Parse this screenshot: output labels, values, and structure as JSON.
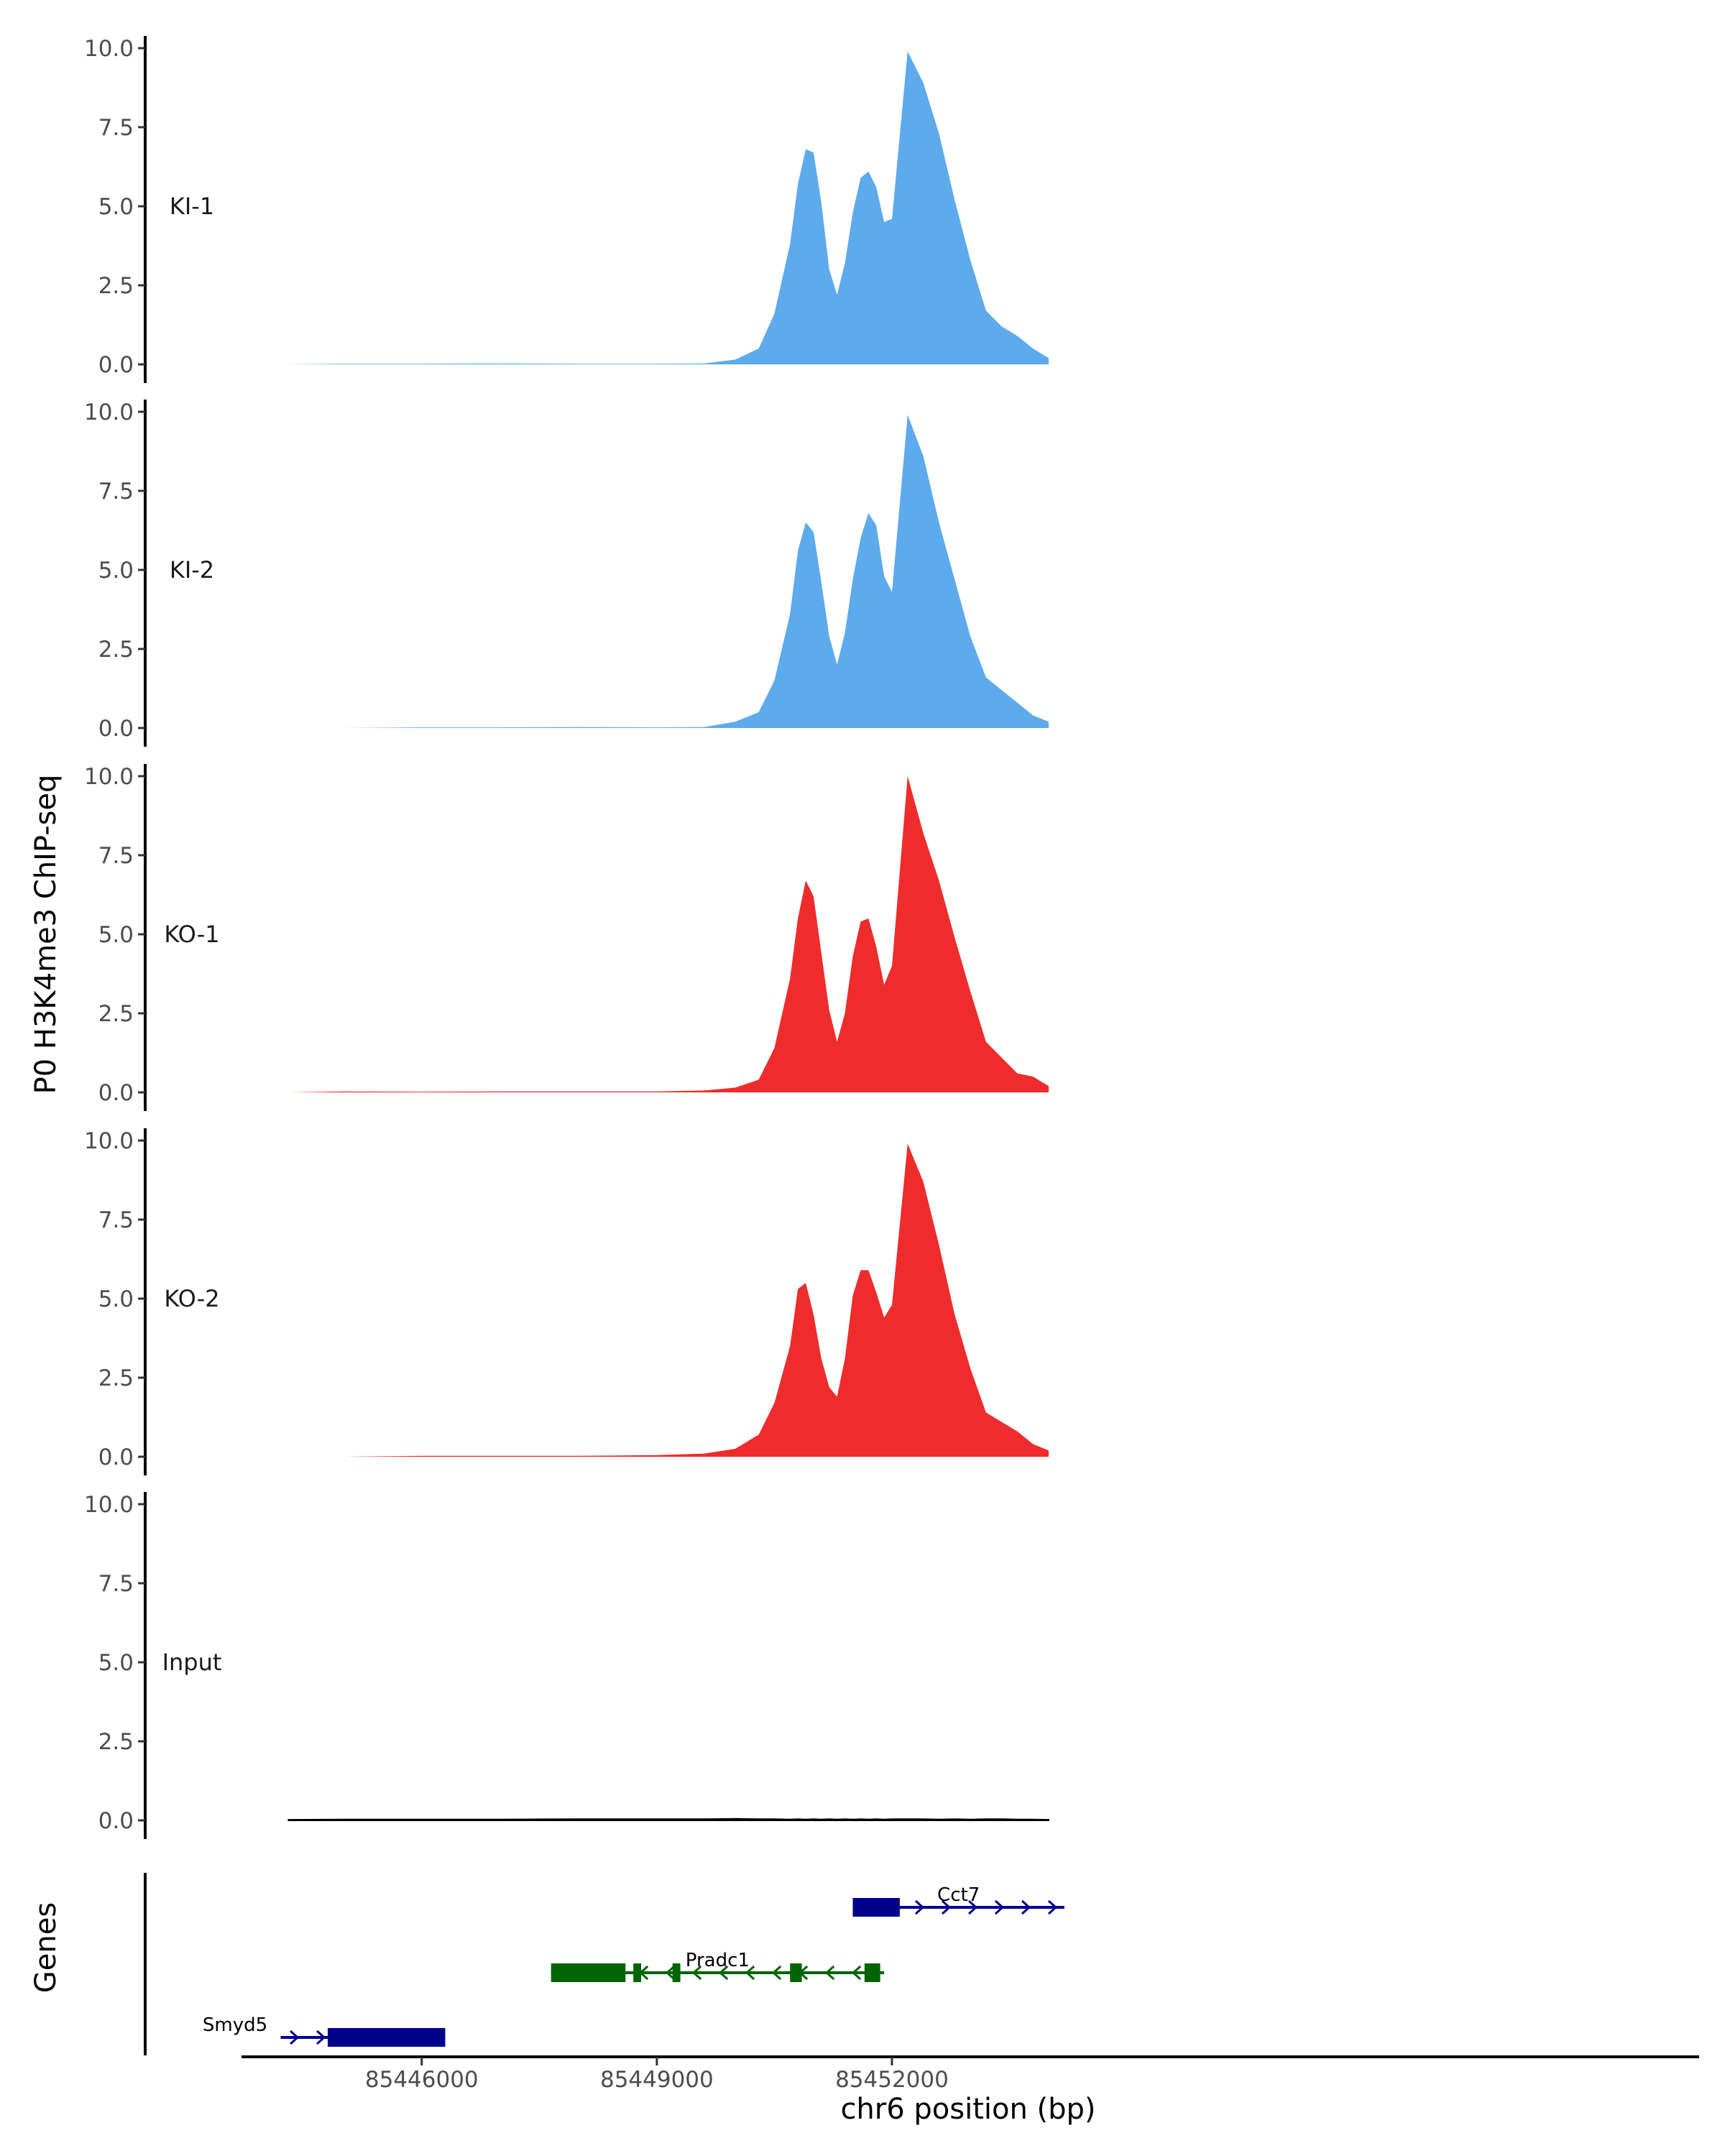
{
  "figure": {
    "ylabel_tracks": "P0 H3K4me3 ChIP-seq",
    "ylabel_genes": "Genes",
    "xlabel": "chr6 position (bp)"
  },
  "chart_data": {
    "type": "area",
    "x_range": [
      85443700,
      85462300
    ],
    "x_ticks": [
      85446000,
      85449000,
      85452000
    ],
    "x_tick_labels": [
      "85446000",
      "85449000",
      "85452000"
    ],
    "ylim": [
      0,
      10
    ],
    "y_ticks": [
      0,
      2.5,
      5,
      7.5,
      10
    ],
    "y_tick_labels": [
      "0.0",
      "2.5",
      "5.0",
      "7.5",
      "10.0"
    ],
    "colors": {
      "KI": "#5DAAEC",
      "KO": "#EE2C2C",
      "Input": "#000000"
    },
    "x": [
      85444300,
      85445000,
      85446000,
      85447000,
      85448000,
      85449000,
      85449600,
      85450000,
      85450300,
      85450500,
      85450700,
      85450800,
      85450900,
      85451000,
      85451100,
      85451200,
      85451300,
      85451400,
      85451500,
      85451600,
      85451700,
      85451800,
      85451900,
      85452000,
      85452200,
      85452400,
      85452600,
      85452800,
      85453000,
      85453200,
      85453400,
      85453600,
      85453800,
      85454000
    ],
    "series": [
      {
        "name": "KI-1",
        "group": "KI",
        "values": [
          0.0,
          0.02,
          0.02,
          0.03,
          0.02,
          0.02,
          0.03,
          0.15,
          0.5,
          1.6,
          3.8,
          5.7,
          6.8,
          6.7,
          5.1,
          3.0,
          2.2,
          3.2,
          4.8,
          5.9,
          6.1,
          5.6,
          4.5,
          4.6,
          9.9,
          8.9,
          7.3,
          5.2,
          3.3,
          1.7,
          1.2,
          0.9,
          0.5,
          0.2
        ]
      },
      {
        "name": "KI-2",
        "group": "KI",
        "values": [
          0.0,
          0.0,
          0.02,
          0.02,
          0.03,
          0.02,
          0.03,
          0.2,
          0.5,
          1.5,
          3.6,
          5.6,
          6.5,
          6.2,
          4.6,
          2.9,
          2.0,
          3.0,
          4.7,
          6.0,
          6.8,
          6.4,
          4.8,
          4.3,
          9.9,
          8.6,
          6.5,
          4.7,
          2.9,
          1.6,
          1.2,
          0.8,
          0.4,
          0.2
        ]
      },
      {
        "name": "KO-1",
        "group": "KO",
        "values": [
          0.0,
          0.03,
          0.02,
          0.03,
          0.03,
          0.03,
          0.06,
          0.15,
          0.4,
          1.4,
          3.6,
          5.5,
          6.7,
          6.2,
          4.4,
          2.6,
          1.6,
          2.5,
          4.3,
          5.4,
          5.5,
          4.6,
          3.4,
          4.0,
          10.0,
          8.2,
          6.7,
          4.9,
          3.2,
          1.6,
          1.1,
          0.6,
          0.5,
          0.2
        ]
      },
      {
        "name": "KO-2",
        "group": "KO",
        "values": [
          0.0,
          0.0,
          0.03,
          0.03,
          0.03,
          0.05,
          0.1,
          0.25,
          0.7,
          1.7,
          3.5,
          5.3,
          5.5,
          4.5,
          3.1,
          2.2,
          1.9,
          3.1,
          5.1,
          5.9,
          5.9,
          5.2,
          4.4,
          4.8,
          9.9,
          8.7,
          6.7,
          4.5,
          2.8,
          1.4,
          1.1,
          0.8,
          0.4,
          0.2
        ]
      },
      {
        "name": "Input",
        "group": "Input",
        "values": [
          0.02,
          0.03,
          0.03,
          0.03,
          0.04,
          0.04,
          0.04,
          0.05,
          0.04,
          0.04,
          0.03,
          0.04,
          0.03,
          0.04,
          0.03,
          0.04,
          0.03,
          0.04,
          0.03,
          0.04,
          0.03,
          0.04,
          0.03,
          0.04,
          0.04,
          0.04,
          0.03,
          0.04,
          0.03,
          0.04,
          0.04,
          0.03,
          0.03,
          0.02
        ]
      }
    ],
    "genes": [
      {
        "name": "Cct7",
        "strand": "+",
        "color": "#00008B",
        "row": 0,
        "start": 85451500,
        "end": 85454200,
        "exons": [
          [
            85451500,
            85452100
          ]
        ]
      },
      {
        "name": "Pradc1",
        "strand": "-",
        "color": "#006400",
        "row": 1,
        "start": 85447650,
        "end": 85451900,
        "exons": [
          [
            85447650,
            85448600
          ],
          [
            85448700,
            85448800
          ],
          [
            85449200,
            85449300
          ],
          [
            85450700,
            85450850
          ],
          [
            85451650,
            85451850
          ]
        ]
      },
      {
        "name": "Smyd5",
        "strand": "+",
        "color": "#00008B",
        "row": 2,
        "start": 85444200,
        "end": 85446300,
        "exons": [
          [
            85444800,
            85446300
          ]
        ]
      }
    ]
  }
}
